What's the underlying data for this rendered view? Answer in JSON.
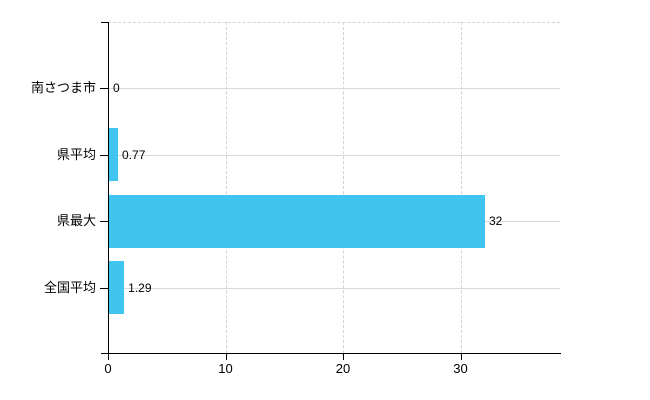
{
  "chart_data": {
    "type": "bar",
    "orientation": "horizontal",
    "title": "",
    "xlabel": "",
    "ylabel": "",
    "categories": [
      "南さつま市",
      "県平均",
      "県最大",
      "全国平均"
    ],
    "values": [
      0,
      0.77,
      32,
      1.29
    ],
    "value_labels": [
      "0",
      "0.77",
      "32",
      "1.29"
    ],
    "x_ticks": [
      0,
      10,
      20,
      30
    ],
    "x_tick_labels": [
      "0",
      "10",
      "20",
      "30"
    ],
    "xlim": [
      0,
      38.5
    ],
    "grid": true,
    "legend": false,
    "bar_color": "#40c4f0",
    "grid_color": "#d4dad4",
    "axis_color": "#000000",
    "text_color": "#000000"
  }
}
